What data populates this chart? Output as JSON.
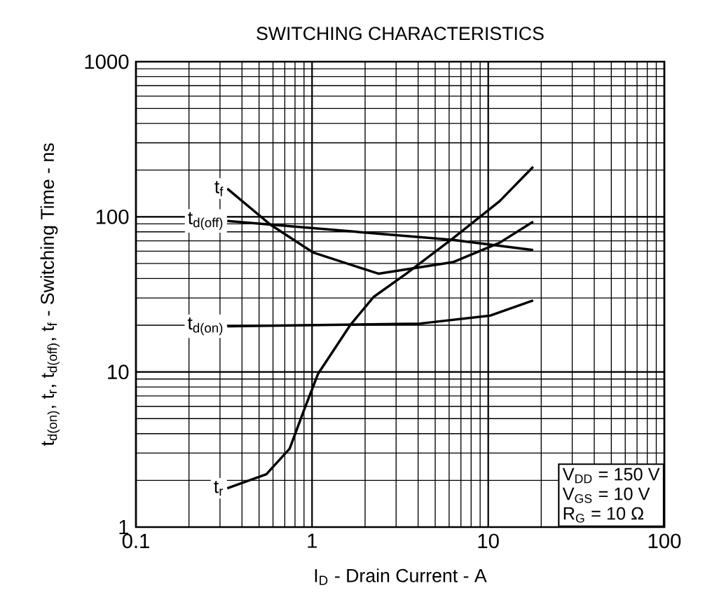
{
  "chart_data": {
    "type": "line",
    "title": "SWITCHING CHARACTERISTICS",
    "xlabel": "I$_{D}$ - Drain Current - A",
    "ylabel": "t$_{d(on)}$, t$_{r}$, t$_{d(off)}$, t$_{f}$ - Switching Time - ns",
    "log": "xy",
    "xlim": [
      0.1,
      100
    ],
    "ylim": [
      1,
      1000
    ],
    "xticks": [
      0.1,
      1,
      10,
      100
    ],
    "yticks": [
      1,
      10,
      100,
      1000
    ],
    "grid": true,
    "marker": "none",
    "line_style": "solid",
    "series": [
      {
        "name": "t$_{f}$",
        "color": "#000000",
        "x": [
          0.33,
          0.58,
          1.01,
          2.38,
          6.3,
          11.6,
          18
        ],
        "values": [
          152,
          89,
          59,
          43,
          51,
          68,
          93
        ]
      },
      {
        "name": "t$_{d(off)}$",
        "color": "#000000",
        "x": [
          0.33,
          6.3,
          18
        ],
        "values": [
          94,
          71,
          61
        ]
      },
      {
        "name": "t$_{d(on)}$",
        "color": "#000000",
        "x": [
          0.33,
          4.1,
          10.3,
          18
        ],
        "values": [
          19.7,
          20.5,
          23.1,
          28.9
        ]
      },
      {
        "name": "t$_{r}$",
        "color": "#000000",
        "x": [
          0.33,
          0.55,
          0.746,
          0.896,
          1.08,
          1.65,
          2.24,
          3.43,
          6.3,
          11.6,
          18
        ],
        "values": [
          1.78,
          2.19,
          3.2,
          5.6,
          9.7,
          20.1,
          30.5,
          43,
          72.6,
          126,
          210
        ]
      }
    ],
    "annotations": [
      "V$_{DD}$ = 150 V",
      "V$_{GS}$ = 10 V",
      "R$_{G}$ = 10 Ω"
    ]
  }
}
